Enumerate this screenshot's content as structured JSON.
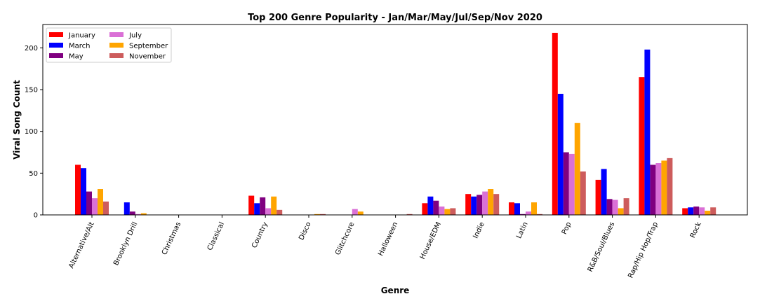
{
  "chart_data": {
    "type": "bar",
    "title": "Top 200 Genre Popularity - Jan/Mar/May/Jul/Sep/Nov 2020",
    "xlabel": "Genre",
    "ylabel": "Viral Song Count",
    "ylim": [
      0,
      228
    ],
    "yticks": [
      0,
      50,
      100,
      150,
      200
    ],
    "grid": false,
    "legend_position": "top-left",
    "categories": [
      "Alternative/Alt",
      "Brooklyn Drill",
      "Christmas",
      "Classical",
      "Country",
      "Disco",
      "Glitchcore",
      "Halloween",
      "House/EDM",
      "Indie",
      "Latin",
      "Pop",
      "R&B/Soul/Blues",
      "Rap/Hip Hop/Trap",
      "Rock"
    ],
    "series": [
      {
        "name": "January",
        "color": "#ff0000",
        "values": [
          60,
          0,
          0,
          0,
          23,
          0,
          0,
          0,
          14,
          25,
          15,
          218,
          42,
          165,
          8
        ]
      },
      {
        "name": "March",
        "color": "#0000ff",
        "values": [
          56,
          15,
          0,
          0,
          14,
          0,
          0,
          0,
          22,
          22,
          14,
          145,
          55,
          198,
          9
        ]
      },
      {
        "name": "May",
        "color": "#800080",
        "values": [
          28,
          4,
          0,
          0,
          21,
          0,
          0,
          0,
          17,
          24,
          1,
          75,
          19,
          60,
          10
        ]
      },
      {
        "name": "July",
        "color": "#da70d6",
        "values": [
          20,
          1,
          0,
          0,
          8,
          0,
          7,
          0,
          10,
          28,
          4,
          73,
          18,
          62,
          9
        ]
      },
      {
        "name": "September",
        "color": "#ffa500",
        "values": [
          31,
          2,
          0,
          0,
          22,
          1,
          4,
          0,
          7,
          31,
          15,
          110,
          8,
          65,
          5
        ]
      },
      {
        "name": "November",
        "color": "#cd5c5c",
        "values": [
          16,
          0,
          0,
          0,
          6,
          1,
          0,
          1,
          8,
          25,
          1,
          52,
          20,
          68,
          9
        ]
      }
    ]
  }
}
